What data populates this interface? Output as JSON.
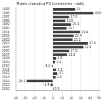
{
  "chart_data": {
    "type": "bar",
    "orientation": "horizontal",
    "title": "Rates changing FX inventories - daily",
    "categories": [
      "1995",
      "1996",
      "1997",
      "1998",
      "1999",
      "2000",
      "2001",
      "2002",
      "2003",
      "2004",
      "2005",
      "2006",
      "2007",
      "2008",
      "2009",
      "2010",
      "2011",
      "2012",
      "2013",
      "2014",
      "2015",
      "2016"
    ],
    "values": [
      24,
      43.6,
      17.6,
      13.5,
      19.4,
      14.7,
      29.4,
      22.4,
      21.2,
      37.6,
      32.9,
      17.6,
      15.3,
      3.5,
      2.4,
      -1.2,
      3.5,
      4.7,
      2.9,
      -28.2,
      -2.4,
      0.6
    ],
    "color": "#404040",
    "xlim": [
      -40,
      50
    ],
    "xticks": [
      -40,
      -30,
      -20,
      -10,
      0,
      10,
      20,
      30,
      40,
      50
    ],
    "grid": true,
    "data_labels": true
  }
}
